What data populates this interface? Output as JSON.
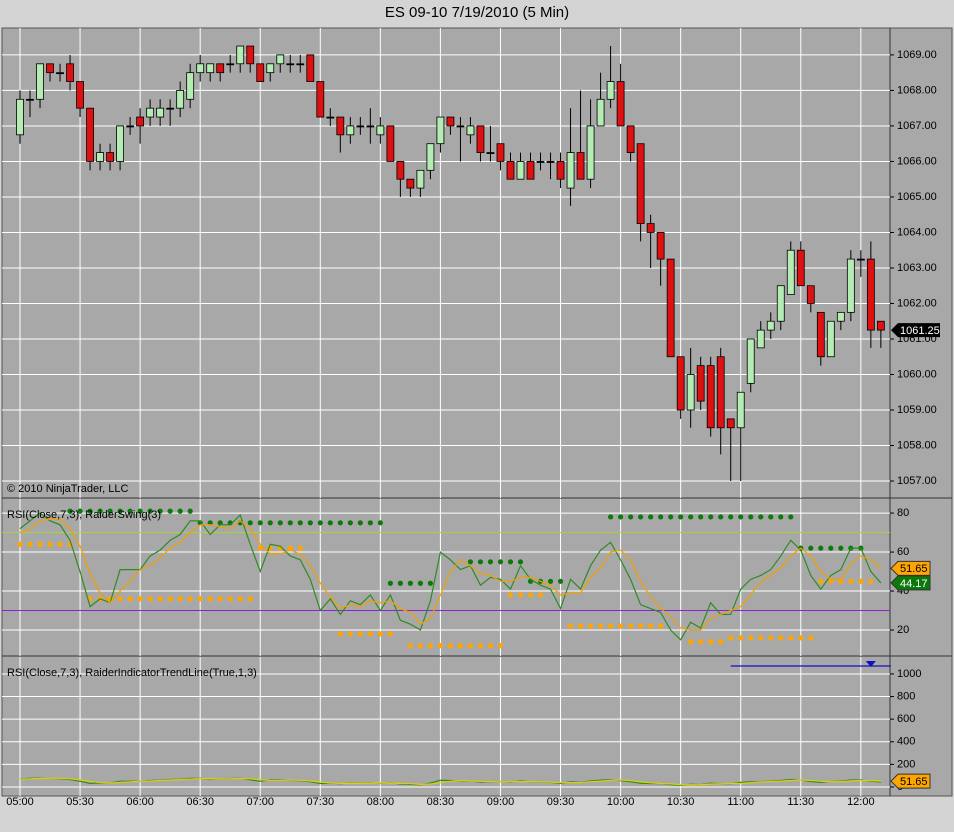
{
  "chart_data": [
    {
      "type": "candlestick",
      "title": "ES 09-10  7/19/2010 (5 Min)",
      "annotation": "© 2010 NinjaTrader, LLC",
      "categories": [
        "05:00",
        null,
        null,
        null,
        null,
        null,
        "05:30",
        null,
        null,
        null,
        null,
        null,
        "06:00",
        null,
        null,
        null,
        null,
        null,
        "06:30",
        null,
        null,
        null,
        null,
        null,
        "07:00",
        null,
        null,
        null,
        null,
        null,
        "07:30",
        null,
        null,
        null,
        null,
        null,
        "08:00",
        null,
        null,
        null,
        null,
        null,
        "08:30",
        null,
        null,
        null,
        null,
        null,
        "09:00",
        null,
        null,
        null,
        null,
        null,
        "09:30",
        null,
        null,
        null,
        null,
        null,
        "10:00",
        null,
        null,
        null,
        null,
        null,
        "10:30",
        null,
        null,
        null,
        null,
        null,
        "11:00",
        null,
        null,
        null,
        null,
        null,
        "11:30",
        null,
        null,
        null,
        null,
        null,
        "12:00",
        null,
        null
      ],
      "open": [
        1066.75,
        1067.75,
        1067.75,
        1068.75,
        1068.5,
        1068.75,
        1068.25,
        1067.5,
        1066,
        1066.25,
        1066,
        1067,
        1067.25,
        1067.25,
        1067.25,
        1067.5,
        1067.5,
        1067.75,
        1068.5,
        1068.5,
        1068.75,
        1068.75,
        1068.75,
        1069.25,
        1068.75,
        1068.5,
        1068.75,
        1068.75,
        1068.75,
        1069,
        1068.25,
        1067.25,
        1067.25,
        1066.75,
        1067,
        1067,
        1066.75,
        1067,
        1066,
        1065.5,
        1065.25,
        1065.75,
        1066.5,
        1067.25,
        1067,
        1066.75,
        1067,
        1066.25,
        1066.5,
        1066,
        1065.5,
        1066,
        1066,
        1066,
        1066,
        1065.25,
        1066.25,
        1065.5,
        1067,
        1067.75,
        1068.25,
        1067,
        1066.5,
        1064.25,
        1064,
        1063.25,
        1060.5,
        1059,
        1060.25,
        1060.25,
        1060.5,
        1058.75,
        1058.5,
        1059.75,
        1060.75,
        1061.25,
        1061.5,
        1062.25,
        1063.5,
        1062.5,
        1061.75,
        1060.5,
        1061.5,
        1061.75,
        1063.25,
        1063.25,
        1061.5
      ],
      "high": [
        1068,
        1068,
        1068.75,
        1068.75,
        1068.75,
        1069,
        1068.25,
        1067.5,
        1066.5,
        1066.5,
        1067,
        1067.25,
        1067.5,
        1067.75,
        1067.75,
        1067.75,
        1068.25,
        1068.75,
        1069,
        1068.75,
        1068.75,
        1069,
        1069.25,
        1069.25,
        1068.75,
        1068.75,
        1069,
        1069,
        1069,
        1069,
        1068.25,
        1067.5,
        1067.25,
        1067.25,
        1067.25,
        1067.5,
        1067.25,
        1067,
        1066,
        1065.5,
        1065.75,
        1066.5,
        1067.25,
        1067.25,
        1067.25,
        1067.25,
        1067,
        1067,
        1066.5,
        1066.25,
        1066.25,
        1066.25,
        1066.25,
        1066.25,
        1066.25,
        1067.5,
        1068,
        1067.75,
        1068.5,
        1069.25,
        1068.75,
        1067,
        1066.5,
        1064.5,
        1064,
        1063.25,
        1060.5,
        1060.75,
        1060.5,
        1060.5,
        1060.75,
        1058.75,
        1059.5,
        1061,
        1061.5,
        1061.75,
        1062.5,
        1063.75,
        1063.75,
        1062.5,
        1061.75,
        1061.5,
        1061.75,
        1063.5,
        1063.5,
        1063.75,
        1061.5
      ],
      "low": [
        1066.5,
        1067.25,
        1067.5,
        1068.25,
        1068.25,
        1068,
        1067.25,
        1065.75,
        1065.75,
        1065.75,
        1065.75,
        1066.75,
        1066.5,
        1067,
        1067,
        1067,
        1067.25,
        1067.5,
        1068.25,
        1068.25,
        1068.25,
        1068.5,
        1068.5,
        1068.5,
        1068.25,
        1068.25,
        1068.5,
        1068.5,
        1068.5,
        1068.25,
        1067.25,
        1067,
        1066.25,
        1066.5,
        1066.75,
        1066.5,
        1066.5,
        1066,
        1065,
        1065,
        1065,
        1065.5,
        1066.25,
        1066.75,
        1066,
        1066.5,
        1066,
        1066,
        1065.75,
        1065.5,
        1065.5,
        1065.5,
        1065.75,
        1065.5,
        1065.25,
        1064.75,
        1065.5,
        1065.25,
        1067,
        1067.5,
        1067,
        1066,
        1063.75,
        1063,
        1062.5,
        1060.5,
        1058.75,
        1058.5,
        1059,
        1058.25,
        1057.75,
        1057,
        1057,
        1059.5,
        1060.75,
        1061,
        1061.25,
        1062.25,
        1062.5,
        1061.75,
        1060.25,
        1060.5,
        1061.25,
        1061.5,
        1062.75,
        1060.75,
        1060.75
      ],
      "close": [
        1067.75,
        1067.75,
        1068.75,
        1068.5,
        1068.5,
        1068.25,
        1067.5,
        1066,
        1066.25,
        1066,
        1067,
        1067,
        1067,
        1067.5,
        1067.5,
        1067.5,
        1068,
        1068.5,
        1068.75,
        1068.75,
        1068.5,
        1068.75,
        1069.25,
        1068.75,
        1068.25,
        1068.75,
        1069,
        1068.75,
        1068.75,
        1068.25,
        1067.25,
        1067.25,
        1066.75,
        1067,
        1067,
        1067,
        1067,
        1066,
        1065.5,
        1065.25,
        1065.75,
        1066.5,
        1067.25,
        1067,
        1067,
        1067,
        1066.25,
        1066.25,
        1066,
        1065.5,
        1066,
        1065.5,
        1066,
        1066,
        1065.5,
        1066.25,
        1065.5,
        1067,
        1067.75,
        1068.25,
        1067,
        1066.25,
        1064.25,
        1064,
        1063.25,
        1060.5,
        1059,
        1060,
        1059.25,
        1058.5,
        1058.5,
        1058.5,
        1059.5,
        1061,
        1061.25,
        1061.5,
        1062.5,
        1063.5,
        1062.5,
        1062,
        1060.5,
        1061.5,
        1061.75,
        1063.25,
        1063.25,
        1061.25,
        1061.25
      ],
      "up_color": "#b4ecb4",
      "down_color": "#dd1111",
      "last_price": {
        "value": 1061.25,
        "label": "1061.25"
      },
      "ylim": [
        1056.55,
        1069.73
      ],
      "yticks": [
        {
          "value": 1057,
          "label": "1057.00"
        },
        {
          "value": 1058,
          "label": "1058.00"
        },
        {
          "value": 1059,
          "label": "1059.00"
        },
        {
          "value": 1060,
          "label": "1060.00"
        },
        {
          "value": 1061,
          "label": "1061.00"
        },
        {
          "value": 1062,
          "label": "1062.00"
        },
        {
          "value": 1063,
          "label": "1063.00"
        },
        {
          "value": 1064,
          "label": "1064.00"
        },
        {
          "value": 1065,
          "label": "1065.00"
        },
        {
          "value": 1066,
          "label": "1066.00"
        },
        {
          "value": 1067,
          "label": "1067.00"
        },
        {
          "value": 1068,
          "label": "1068.00"
        },
        {
          "value": 1069,
          "label": "1069.00"
        }
      ],
      "grid": true
    },
    {
      "type": "line",
      "title": "RSI(Close,7,3), RaiderSwing(3)",
      "series": [
        {
          "color": "#2e8b22",
          "values": [
            72,
            76,
            80,
            76,
            74,
            66,
            50,
            32,
            36,
            34,
            51,
            51,
            51,
            58,
            61,
            66,
            69,
            76,
            76,
            69,
            74,
            74,
            79,
            64,
            50,
            64,
            63,
            58,
            56,
            46,
            30,
            36,
            28,
            35,
            33,
            38,
            30,
            38,
            25,
            23,
            20,
            35,
            60,
            56,
            51,
            53,
            43,
            47,
            46,
            41,
            53,
            46,
            43,
            41,
            31,
            46,
            41,
            53,
            61,
            65,
            56,
            46,
            33,
            31,
            29,
            20,
            15,
            24,
            21,
            34,
            28,
            28,
            41,
            46,
            48,
            51,
            58,
            66,
            61,
            48,
            41,
            48,
            51,
            62,
            62,
            50,
            44.17
          ],
          "last_label": "44.17",
          "label_fill": "#0a7a0a",
          "label_text": "#ffffff"
        },
        {
          "color": "#f0a000",
          "values": [
            70,
            72,
            76,
            77,
            77,
            72,
            63,
            49,
            39,
            34,
            40,
            45,
            51,
            53,
            57,
            62,
            65,
            70,
            74,
            74,
            73,
            72,
            76,
            72,
            64,
            59,
            59,
            61,
            59,
            53,
            44,
            37,
            31,
            33,
            32,
            35,
            34,
            35,
            31,
            29,
            23,
            26,
            38,
            50,
            56,
            53,
            49,
            48,
            45,
            45,
            47,
            47,
            45,
            43,
            38,
            39,
            39,
            47,
            52,
            60,
            61,
            56,
            45,
            37,
            31,
            27,
            21,
            20,
            20,
            26,
            28,
            30,
            32,
            38,
            45,
            48,
            52,
            58,
            62,
            58,
            50,
            46,
            46,
            54,
            58,
            56,
            51.65
          ],
          "last_label": "51.65",
          "label_fill": "#ffa500",
          "label_text": "#000000"
        }
      ],
      "dots": [
        {
          "color": "#0a7a0a",
          "values": [
            null,
            null,
            null,
            null,
            null,
            81,
            81,
            81,
            81,
            81,
            81,
            81,
            81,
            81,
            81,
            81,
            81,
            81,
            75,
            75,
            75,
            75,
            75,
            75,
            75,
            75,
            75,
            75,
            75,
            75,
            75,
            75,
            75,
            75,
            75,
            75,
            75,
            44,
            44,
            44,
            44,
            44,
            null,
            null,
            null,
            55,
            55,
            55,
            55,
            55,
            55,
            45,
            45,
            45,
            45,
            null,
            null,
            null,
            null,
            78,
            78,
            78,
            78,
            78,
            78,
            78,
            78,
            78,
            78,
            78,
            78,
            78,
            78,
            78,
            78,
            78,
            78,
            78,
            62,
            62,
            62,
            62,
            62,
            62,
            62,
            null,
            null
          ]
        },
        {
          "color": "#ffa500",
          "values": [
            64,
            64,
            64,
            64,
            64,
            64,
            null,
            36,
            36,
            36,
            36,
            36,
            36,
            36,
            36,
            36,
            36,
            36,
            36,
            36,
            36,
            36,
            36,
            36,
            62,
            62,
            62,
            62,
            62,
            null,
            null,
            null,
            18,
            18,
            18,
            18,
            18,
            18,
            null,
            12,
            12,
            12,
            12,
            12,
            12,
            12,
            12,
            12,
            12,
            38,
            38,
            38,
            38,
            null,
            null,
            22,
            22,
            22,
            22,
            22,
            22,
            22,
            22,
            22,
            22,
            null,
            null,
            14,
            14,
            14,
            14,
            16,
            16,
            16,
            16,
            16,
            16,
            16,
            16,
            16,
            45,
            45,
            45,
            45,
            45,
            45,
            null
          ]
        }
      ],
      "levels": [
        {
          "value": 70,
          "color": "#a8d040"
        },
        {
          "value": 30,
          "color": "#9020d0"
        }
      ],
      "ylim": [
        7.2,
        86.7
      ],
      "yticks": [
        20,
        40,
        60,
        80
      ],
      "grid": true
    },
    {
      "type": "line",
      "title": "RSI(Close,7,3), RaiderIndicatorTrendLine(True,1,3)",
      "series": [
        {
          "color": "#2e8b22",
          "values": [
            72,
            76,
            80,
            76,
            74,
            66,
            50,
            32,
            36,
            34,
            51,
            51,
            51,
            58,
            61,
            66,
            69,
            76,
            76,
            69,
            74,
            74,
            79,
            64,
            50,
            64,
            63,
            58,
            56,
            46,
            30,
            36,
            28,
            35,
            33,
            38,
            30,
            38,
            25,
            23,
            20,
            35,
            60,
            56,
            51,
            53,
            43,
            47,
            46,
            41,
            53,
            46,
            43,
            41,
            31,
            46,
            41,
            53,
            61,
            65,
            56,
            46,
            33,
            31,
            29,
            20,
            15,
            24,
            21,
            34,
            28,
            28,
            41,
            46,
            48,
            51,
            58,
            66,
            61,
            48,
            41,
            48,
            51,
            62,
            62,
            50,
            44.17
          ]
        },
        {
          "color": "#e0d000",
          "values": [
            70,
            72,
            76,
            77,
            77,
            72,
            63,
            49,
            39,
            34,
            40,
            45,
            51,
            53,
            57,
            62,
            65,
            70,
            74,
            74,
            73,
            72,
            76,
            72,
            64,
            59,
            59,
            61,
            59,
            53,
            44,
            37,
            31,
            33,
            32,
            35,
            34,
            35,
            31,
            29,
            23,
            26,
            38,
            50,
            56,
            53,
            49,
            48,
            45,
            45,
            47,
            47,
            45,
            43,
            38,
            39,
            39,
            47,
            52,
            60,
            61,
            56,
            45,
            37,
            31,
            27,
            21,
            20,
            20,
            26,
            28,
            30,
            32,
            38,
            45,
            48,
            52,
            58,
            62,
            58,
            50,
            46,
            46,
            54,
            58,
            56,
            51.65
          ],
          "last_label": "51.65",
          "label_fill": "#ffa500",
          "label_text": "#000000"
        }
      ],
      "trendline": {
        "from": 71,
        "to": 87,
        "value": 1070,
        "color": "#1010c0"
      },
      "ylim": [
        -71,
        1141
      ],
      "yticks": [
        0,
        200,
        400,
        600,
        800,
        1000
      ],
      "grid": true
    }
  ]
}
